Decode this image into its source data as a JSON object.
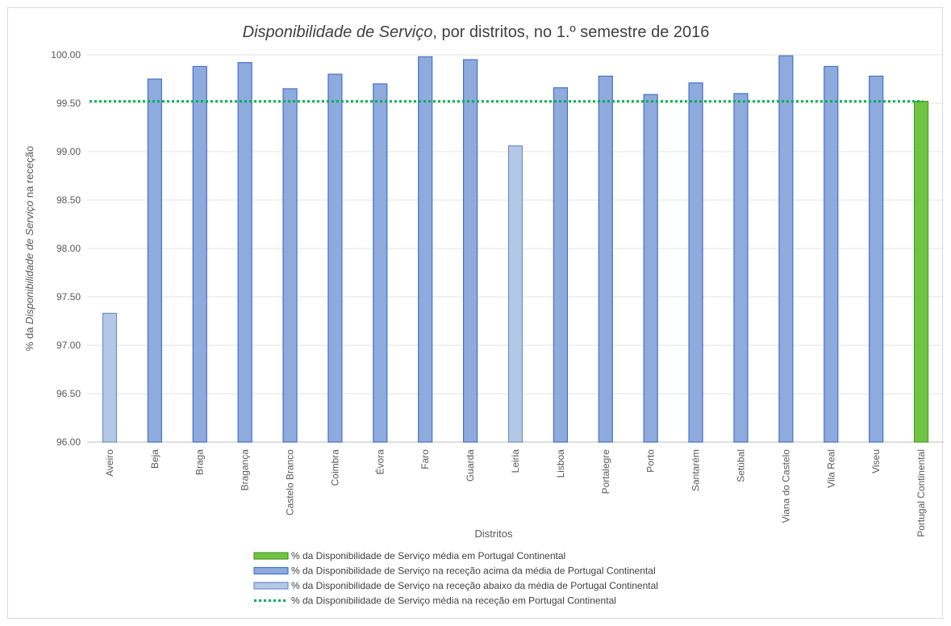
{
  "chart_data": {
    "type": "bar",
    "title_italic": "Disponibilidade de Serviço",
    "title_rest": ", por distritos, no 1.º semestre de 2016",
    "xlabel": "Distritos",
    "ylabel_prefix": "% da ",
    "ylabel_italic": "Disponibilidade de Serviço",
    "ylabel_suffix": " na receção",
    "ylim": [
      96,
      100
    ],
    "yticks": [
      "96.00",
      "96.50",
      "97.00",
      "97.50",
      "98.00",
      "98.50",
      "99.00",
      "99.50",
      "100.00"
    ],
    "grid": true,
    "categories": [
      "Aveiro",
      "Beja",
      "Braga",
      "Bragança",
      "Castelo Branco",
      "Coimbra",
      "Évora",
      "Faro",
      "Guarda",
      "Leiria",
      "Lisboa",
      "Portalegre",
      "Porto",
      "Santarém",
      "Setúbal",
      "Viana do Castelo",
      "Vila Real",
      "Viseu",
      "Portugal Continental"
    ],
    "values": [
      97.33,
      99.75,
      99.88,
      99.92,
      99.65,
      99.8,
      99.7,
      99.98,
      99.95,
      99.06,
      99.66,
      99.78,
      99.59,
      99.71,
      99.6,
      99.99,
      99.88,
      99.78,
      99.52
    ],
    "bar_classes": [
      "below",
      "above",
      "above",
      "above",
      "above",
      "above",
      "above",
      "above",
      "above",
      "below",
      "above",
      "above",
      "above",
      "above",
      "above",
      "above",
      "above",
      "above",
      "mean"
    ],
    "average_line": 99.52,
    "colors": {
      "above": "#8faadc",
      "above_border": "#4472c4",
      "below": "#b4c7e7",
      "below_border": "#6f8fc6",
      "mean": "#70c442",
      "mean_border": "#4e9a2c",
      "average_line": "#00b050",
      "grid": "#e3e3e3",
      "axis": "#bfbfbf"
    },
    "legend_position": "bottom",
    "legend": [
      {
        "kind": "mean",
        "label": "% da Disponibilidade de Serviço média em Portugal Continental"
      },
      {
        "kind": "above",
        "label": "% da Disponibilidade de Serviço na receção acima da média de Portugal Continental"
      },
      {
        "kind": "below",
        "label": "% da Disponibilidade de Serviço na receção abaixo da média de Portugal Continental"
      },
      {
        "kind": "line",
        "label": "% da Disponibilidade de Serviço média na receção em Portugal Continental"
      }
    ]
  }
}
